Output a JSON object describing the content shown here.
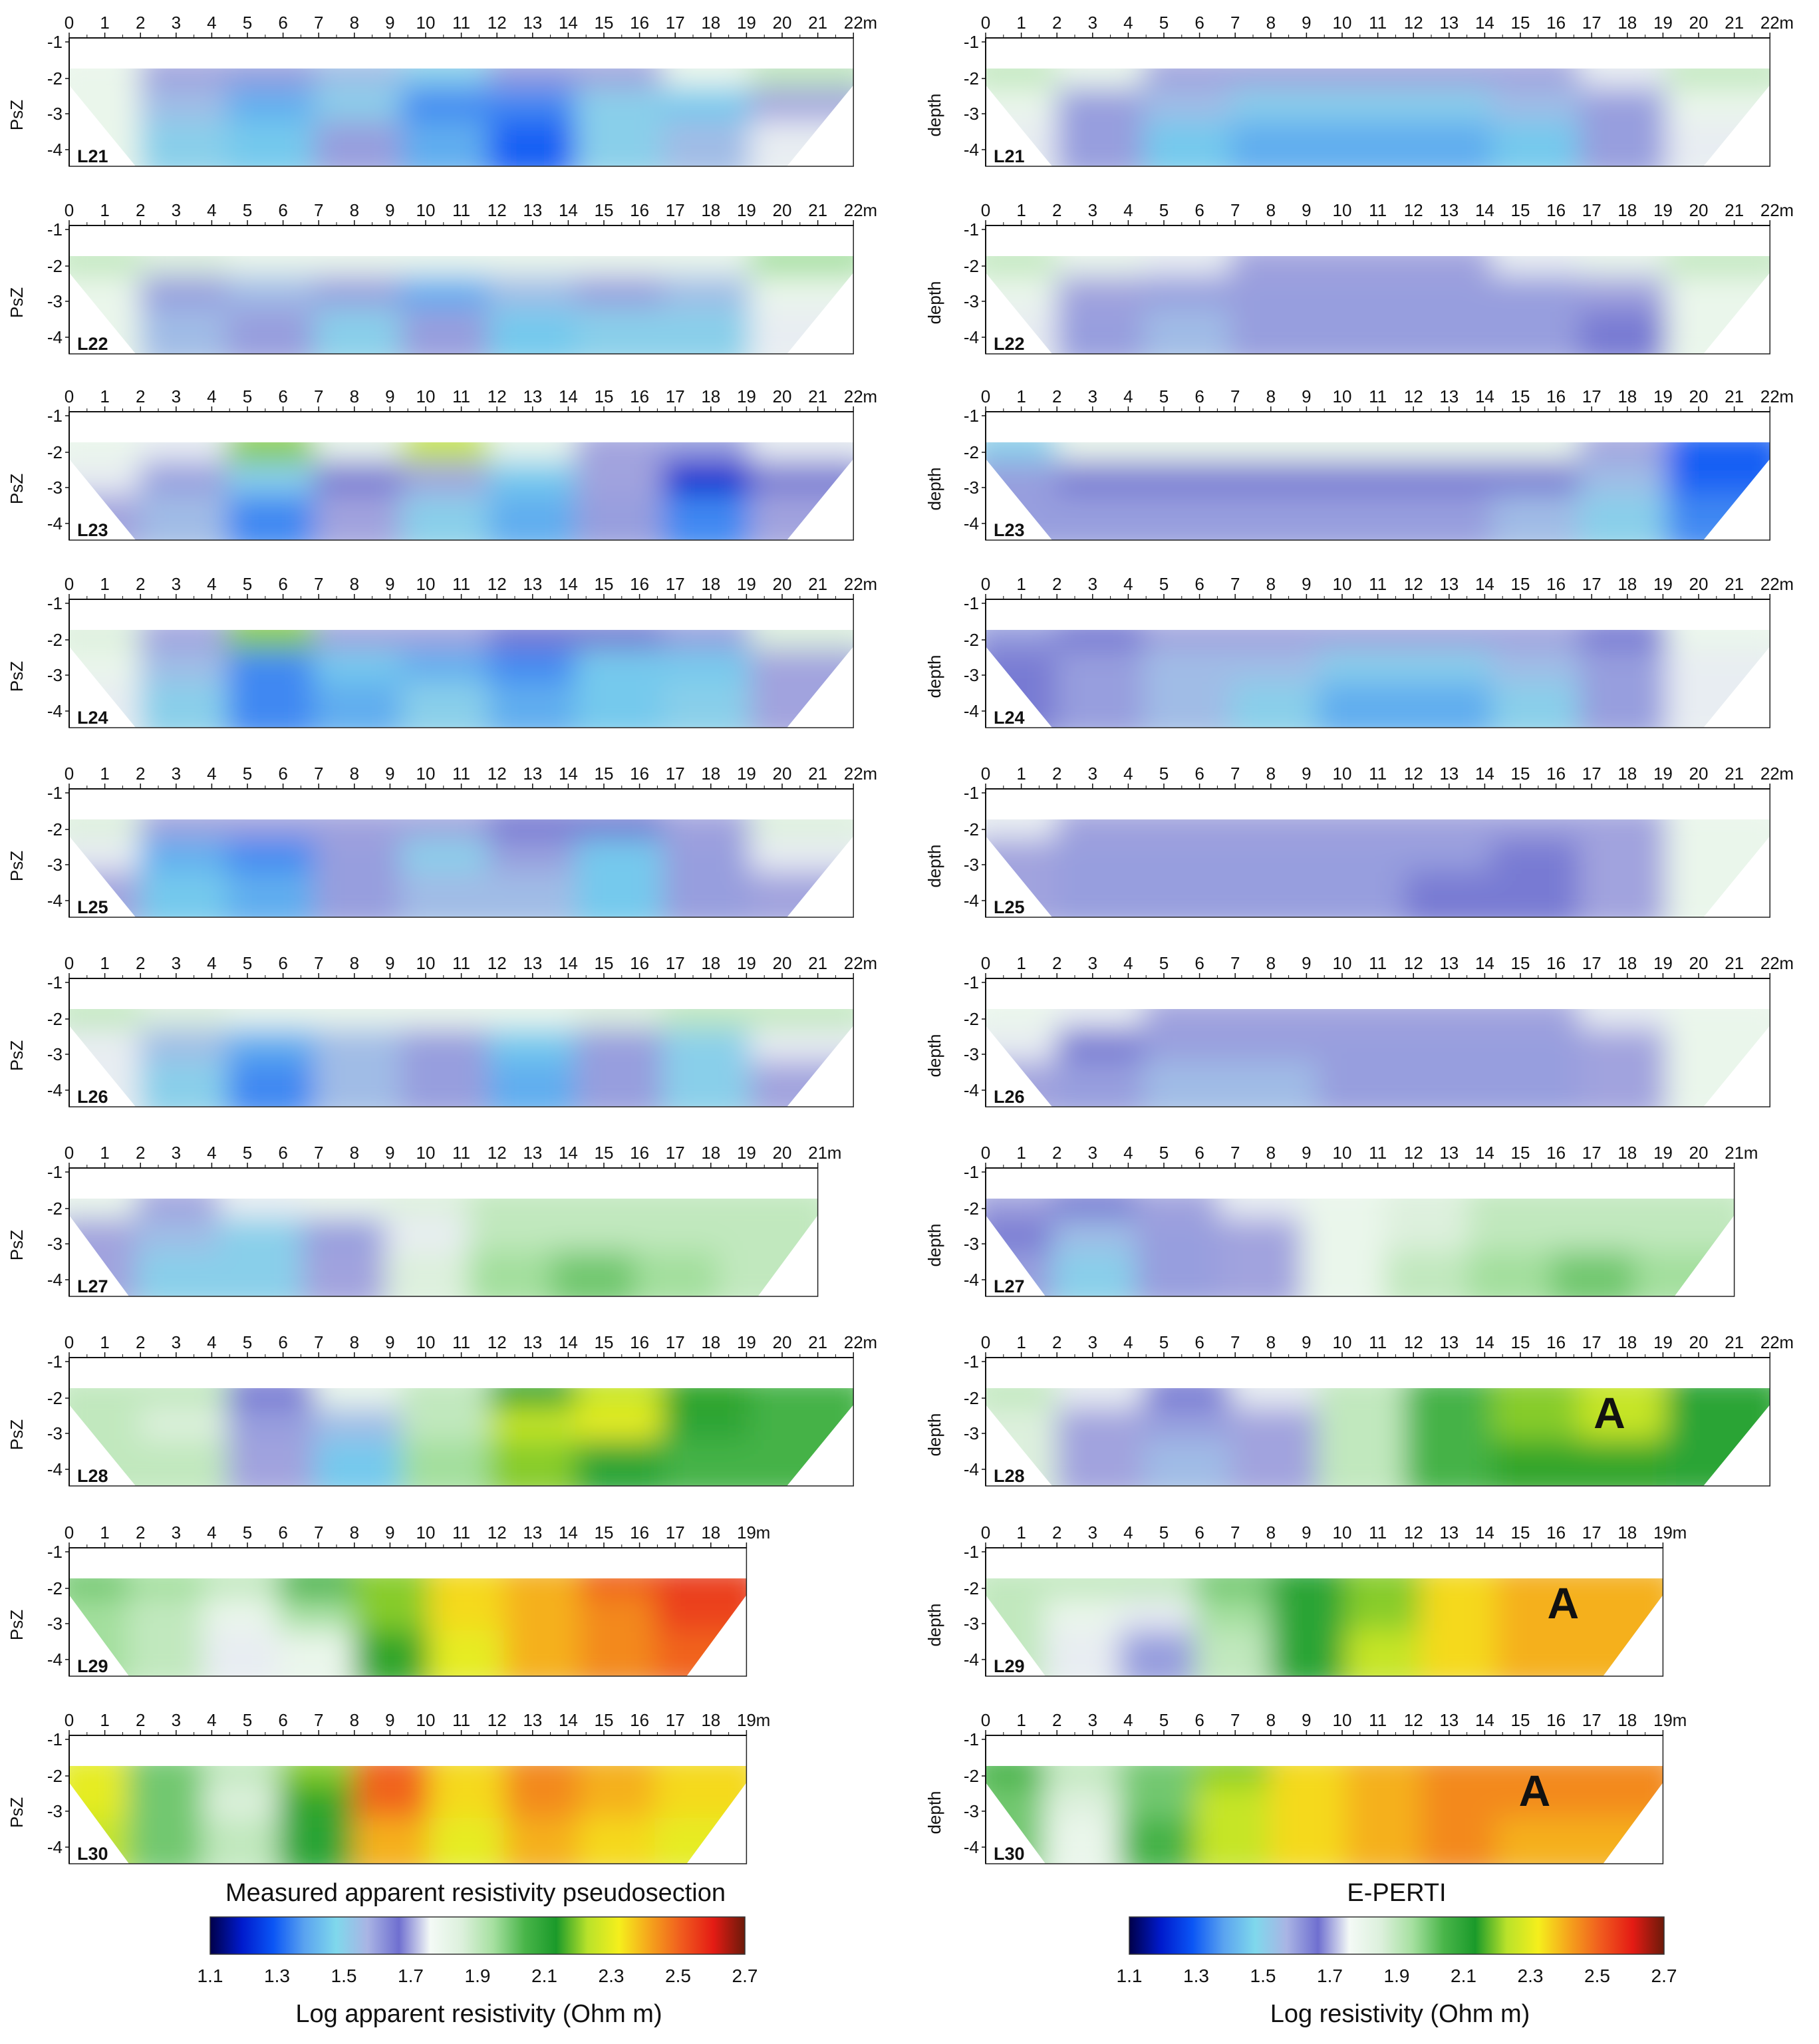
{
  "chart_data": {
    "type": "heatmap",
    "colorscale": [
      "#00004a",
      "#001acc",
      "#0a55f5",
      "#5aa3f0",
      "#7fd8ec",
      "#a9b4e4",
      "#6f6fd0",
      "#f4faf6",
      "#dcf0dc",
      "#a6e0a0",
      "#49b549",
      "#1a9a2a",
      "#b9e22a",
      "#f5ef1c",
      "#f5a21c",
      "#f05a1e",
      "#e41b14",
      "#6b1a0a"
    ],
    "panels_left_ylabel": "PsZ",
    "panels_right_ylabel": "depth",
    "y_ticks": [
      "-1",
      "-2",
      "-3",
      "-4"
    ],
    "x_unit": "m",
    "lines": [
      {
        "id": "L21",
        "x_max": 22,
        "levels": {
          "left": [
            [
              1.8,
              1.7,
              1.6,
              1.55,
              1.5,
              1.6,
              1.7,
              1.8,
              1.9
            ],
            [
              1.8,
              1.55,
              1.4,
              1.5,
              1.35,
              1.35,
              1.5,
              1.45,
              1.7
            ],
            [
              1.8,
              1.5,
              1.45,
              1.6,
              1.4,
              1.3,
              1.5,
              1.55,
              1.75
            ]
          ],
          "right": [
            [
              1.9,
              1.8,
              1.7,
              1.7,
              1.7,
              1.7,
              1.7,
              1.75,
              1.9
            ],
            [
              1.8,
              1.6,
              1.55,
              1.5,
              1.5,
              1.5,
              1.55,
              1.6,
              1.8
            ],
            [
              1.75,
              1.6,
              1.45,
              1.4,
              1.4,
              1.4,
              1.45,
              1.6,
              1.75
            ]
          ]
        }
      },
      {
        "id": "L22",
        "x_max": 22,
        "levels": {
          "left": [
            [
              1.9,
              1.85,
              1.8,
              1.8,
              1.8,
              1.8,
              1.8,
              1.8,
              1.95
            ],
            [
              1.8,
              1.6,
              1.55,
              1.6,
              1.4,
              1.55,
              1.6,
              1.55,
              1.8
            ],
            [
              1.8,
              1.55,
              1.6,
              1.5,
              1.6,
              1.45,
              1.5,
              1.5,
              1.75
            ]
          ],
          "right": [
            [
              1.9,
              1.8,
              1.75,
              1.7,
              1.7,
              1.7,
              1.75,
              1.8,
              1.9
            ],
            [
              1.8,
              1.7,
              1.6,
              1.6,
              1.6,
              1.6,
              1.6,
              1.7,
              1.8
            ],
            [
              1.75,
              1.6,
              1.55,
              1.6,
              1.6,
              1.6,
              1.6,
              1.65,
              1.8
            ]
          ]
        }
      },
      {
        "id": "L23",
        "x_max": 22,
        "levels": {
          "left": [
            [
              1.8,
              1.75,
              2.2,
              1.8,
              2.25,
              1.8,
              1.7,
              1.6,
              1.75
            ],
            [
              1.75,
              1.6,
              1.5,
              1.65,
              1.7,
              1.45,
              1.7,
              1.2,
              1.65
            ],
            [
              1.7,
              1.55,
              1.35,
              1.7,
              1.5,
              1.4,
              1.6,
              1.35,
              1.7
            ]
          ],
          "right": [
            [
              1.5,
              1.8,
              1.8,
              1.8,
              1.8,
              1.8,
              1.8,
              1.7,
              1.3
            ],
            [
              1.6,
              1.65,
              1.65,
              1.65,
              1.65,
              1.65,
              1.65,
              1.55,
              1.3
            ],
            [
              1.6,
              1.6,
              1.6,
              1.6,
              1.6,
              1.6,
              1.55,
              1.5,
              1.35
            ]
          ]
        }
      },
      {
        "id": "L24",
        "x_max": 22,
        "levels": {
          "left": [
            [
              1.85,
              1.7,
              2.2,
              1.7,
              1.7,
              1.65,
              1.65,
              1.6,
              1.85
            ],
            [
              1.8,
              1.55,
              1.35,
              1.45,
              1.4,
              1.35,
              1.45,
              1.45,
              1.7
            ],
            [
              1.75,
              1.5,
              1.35,
              1.4,
              1.5,
              1.4,
              1.45,
              1.5,
              1.7
            ]
          ],
          "right": [
            [
              1.6,
              1.65,
              1.7,
              1.7,
              1.7,
              1.7,
              1.7,
              1.65,
              1.8
            ],
            [
              1.65,
              1.6,
              1.55,
              1.55,
              1.5,
              1.5,
              1.55,
              1.6,
              1.75
            ],
            [
              1.65,
              1.6,
              1.55,
              1.5,
              1.4,
              1.4,
              1.5,
              1.6,
              1.75
            ]
          ]
        }
      },
      {
        "id": "L25",
        "x_max": 22,
        "levels": {
          "left": [
            [
              1.85,
              1.7,
              1.7,
              1.7,
              1.7,
              1.65,
              1.65,
              1.7,
              1.85
            ],
            [
              1.75,
              1.4,
              1.35,
              1.6,
              1.5,
              1.6,
              1.45,
              1.6,
              1.75
            ],
            [
              1.7,
              1.45,
              1.4,
              1.6,
              1.55,
              1.55,
              1.45,
              1.6,
              1.7
            ]
          ],
          "right": [
            [
              1.75,
              1.7,
              1.7,
              1.7,
              1.7,
              1.7,
              1.7,
              1.7,
              1.8
            ],
            [
              1.7,
              1.6,
              1.6,
              1.6,
              1.6,
              1.6,
              1.65,
              1.7,
              1.8
            ],
            [
              1.7,
              1.6,
              1.6,
              1.6,
              1.6,
              1.65,
              1.65,
              1.7,
              1.8
            ]
          ]
        }
      },
      {
        "id": "L26",
        "x_max": 22,
        "levels": {
          "left": [
            [
              1.9,
              1.85,
              1.8,
              1.8,
              1.8,
              1.8,
              1.85,
              1.9,
              1.9
            ],
            [
              1.75,
              1.55,
              1.4,
              1.55,
              1.6,
              1.45,
              1.6,
              1.5,
              1.75
            ],
            [
              1.75,
              1.5,
              1.35,
              1.55,
              1.6,
              1.4,
              1.6,
              1.5,
              1.7
            ]
          ],
          "right": [
            [
              1.8,
              1.75,
              1.7,
              1.7,
              1.7,
              1.7,
              1.7,
              1.75,
              1.8
            ],
            [
              1.75,
              1.65,
              1.6,
              1.6,
              1.6,
              1.6,
              1.6,
              1.7,
              1.8
            ],
            [
              1.7,
              1.6,
              1.55,
              1.55,
              1.6,
              1.6,
              1.6,
              1.7,
              1.8
            ]
          ]
        }
      },
      {
        "id": "L27",
        "x_max": 21,
        "levels": {
          "left": [
            [
              1.8,
              1.7,
              1.75,
              1.8,
              1.85,
              1.9,
              1.9,
              1.9,
              1.9
            ],
            [
              1.7,
              1.55,
              1.5,
              1.6,
              1.75,
              1.9,
              1.9,
              1.9,
              1.9
            ],
            [
              1.7,
              1.5,
              1.5,
              1.7,
              1.85,
              1.95,
              2.0,
              1.95,
              1.9
            ]
          ],
          "right": [
            [
              1.7,
              1.65,
              1.7,
              1.75,
              1.8,
              1.85,
              1.9,
              1.9,
              1.9
            ],
            [
              1.65,
              1.55,
              1.6,
              1.7,
              1.8,
              1.85,
              1.9,
              1.9,
              1.9
            ],
            [
              1.6,
              1.5,
              1.6,
              1.7,
              1.8,
              1.9,
              1.95,
              2.0,
              1.95
            ]
          ]
        }
      },
      {
        "id": "L28",
        "x_max": 22,
        "levels": {
          "left": [
            [
              1.9,
              1.9,
              1.65,
              1.8,
              1.9,
              2.1,
              2.25,
              2.15,
              2.05
            ],
            [
              1.9,
              1.85,
              1.6,
              1.55,
              1.9,
              2.25,
              2.3,
              2.1,
              2.05
            ],
            [
              1.9,
              1.9,
              1.7,
              1.45,
              1.95,
              2.2,
              2.1,
              2.05,
              2.05
            ]
          ],
          "right": [
            [
              1.9,
              1.75,
              1.65,
              1.75,
              1.9,
              2.05,
              2.2,
              2.25,
              2.1
            ],
            [
              1.85,
              1.7,
              1.6,
              1.7,
              1.9,
              2.05,
              2.2,
              2.25,
              2.1
            ],
            [
              1.85,
              1.7,
              1.55,
              1.7,
              1.9,
              2.05,
              2.15,
              2.15,
              2.1
            ]
          ]
        }
      },
      {
        "id": "L29",
        "x_max": 19,
        "levels": {
          "left": [
            [
              2.0,
              1.95,
              1.9,
              2.05,
              2.2,
              2.35,
              2.4,
              2.5,
              2.55
            ],
            [
              1.95,
              1.9,
              1.8,
              1.95,
              2.2,
              2.35,
              2.4,
              2.45,
              2.55
            ],
            [
              1.95,
              1.9,
              1.75,
              1.8,
              2.15,
              2.3,
              2.4,
              2.45,
              2.5
            ]
          ],
          "right": [
            [
              1.9,
              1.9,
              1.9,
              2.0,
              2.1,
              2.2,
              2.35,
              2.4,
              2.4
            ],
            [
              1.9,
              1.8,
              1.75,
              1.95,
              2.1,
              2.2,
              2.35,
              2.4,
              2.4
            ],
            [
              1.9,
              1.75,
              1.6,
              1.9,
              2.1,
              2.25,
              2.35,
              2.4,
              2.4
            ]
          ]
        }
      },
      {
        "id": "L30",
        "x_max": 19,
        "levels": {
          "left": [
            [
              2.3,
              2.0,
              1.9,
              2.2,
              2.5,
              2.35,
              2.45,
              2.4,
              2.35
            ],
            [
              2.3,
              2.0,
              1.85,
              2.15,
              2.5,
              2.35,
              2.45,
              2.4,
              2.35
            ],
            [
              2.25,
              2.0,
              1.9,
              2.1,
              2.4,
              2.3,
              2.4,
              2.35,
              2.3
            ]
          ],
          "right": [
            [
              2.05,
              1.9,
              2.0,
              2.2,
              2.35,
              2.4,
              2.45,
              2.45,
              2.45
            ],
            [
              2.0,
              1.85,
              2.0,
              2.25,
              2.35,
              2.4,
              2.45,
              2.45,
              2.45
            ],
            [
              2.0,
              1.8,
              2.05,
              2.25,
              2.35,
              2.4,
              2.45,
              2.4,
              2.4
            ]
          ]
        }
      }
    ],
    "annotations": [
      {
        "line": "L28",
        "panel": "right",
        "text": "A",
        "x": 17.5,
        "depth": -2.2
      },
      {
        "line": "L29",
        "panel": "right",
        "text": "A",
        "x": 16.2,
        "depth": -2.3
      },
      {
        "line": "L30",
        "panel": "right",
        "text": "A",
        "x": 15.4,
        "depth": -2.4
      }
    ],
    "left_title": "Measured apparent resistivity pseudosection",
    "right_title": "E-PERTI",
    "colorbar_left": {
      "ticks": [
        "1.1",
        "1.3",
        "1.5",
        "1.7",
        "1.9",
        "2.1",
        "2.3",
        "2.5",
        "2.7"
      ],
      "label": "Log apparent resistivity (Ohm m)",
      "range": [
        1.1,
        2.7
      ]
    },
    "colorbar_right": {
      "ticks": [
        "1.1",
        "1.3",
        "1.5",
        "1.7",
        "1.9",
        "2.1",
        "2.3",
        "2.5",
        "2.7"
      ],
      "label": "Log resistivity (Ohm m)",
      "range": [
        1.1,
        2.7
      ]
    }
  }
}
